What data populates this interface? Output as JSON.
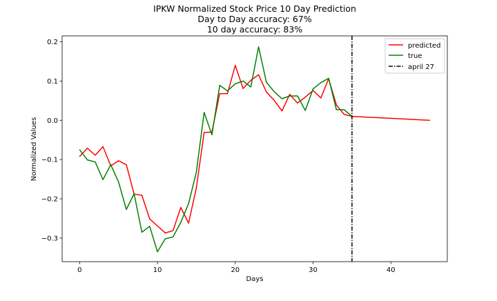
{
  "chart_data": {
    "type": "line",
    "title_lines": [
      "IPKW Normalized Stock Price 10 Day Prediction",
      "Day to Day accuracy: 67%",
      "10 day accuracy: 83%"
    ],
    "xlabel": "Days",
    "ylabel": "Normalized Values",
    "xlim": [
      -2.25,
      47.25
    ],
    "ylim": [
      -0.36,
      0.215
    ],
    "xticks": [
      0,
      10,
      20,
      30,
      40
    ],
    "yticks": [
      -0.3,
      -0.2,
      -0.1,
      0.0,
      0.1,
      0.2
    ],
    "ytick_labels": [
      "−0.3",
      "−0.2",
      "−0.1",
      "0.0",
      "0.1",
      "0.2"
    ],
    "legend_position": "top-right",
    "series": [
      {
        "name": "predicted",
        "color": "#ff0000",
        "x": [
          0,
          1,
          2,
          3,
          4,
          5,
          6,
          7,
          8,
          9,
          10,
          11,
          12,
          13,
          14,
          15,
          16,
          17,
          18,
          19,
          20,
          21,
          22,
          23,
          24,
          25,
          26,
          27,
          28,
          29,
          30,
          31,
          32,
          33,
          34,
          35,
          36,
          37,
          38,
          39,
          40,
          41,
          42,
          43,
          44,
          45
        ],
        "y": [
          -0.092,
          -0.071,
          -0.089,
          -0.067,
          -0.116,
          -0.103,
          -0.113,
          -0.188,
          -0.191,
          -0.251,
          -0.269,
          -0.287,
          -0.281,
          -0.222,
          -0.262,
          -0.172,
          -0.031,
          -0.03,
          0.068,
          0.068,
          0.14,
          0.081,
          0.102,
          0.116,
          0.072,
          0.051,
          0.024,
          0.066,
          0.044,
          0.059,
          0.076,
          0.057,
          0.106,
          0.039,
          0.015,
          0.01,
          0.009,
          0.008,
          0.007,
          0.006,
          0.005,
          0.004,
          0.003,
          0.002,
          0.001,
          0.0
        ]
      },
      {
        "name": "true",
        "color": "#008000",
        "x": [
          0,
          1,
          2,
          3,
          4,
          5,
          6,
          7,
          8,
          9,
          10,
          11,
          12,
          13,
          14,
          15,
          16,
          17,
          18,
          19,
          20,
          21,
          22,
          23,
          24,
          25,
          26,
          27,
          28,
          29,
          30,
          31,
          32,
          33,
          34,
          35
        ],
        "y": [
          -0.075,
          -0.101,
          -0.106,
          -0.151,
          -0.113,
          -0.157,
          -0.227,
          -0.187,
          -0.285,
          -0.27,
          -0.335,
          -0.302,
          -0.297,
          -0.26,
          -0.212,
          -0.132,
          0.02,
          -0.037,
          0.089,
          0.075,
          0.093,
          0.1,
          0.085,
          0.187,
          0.097,
          0.073,
          0.055,
          0.062,
          0.062,
          0.025,
          0.08,
          0.096,
          0.107,
          0.027,
          0.027,
          0.01
        ]
      }
    ],
    "vline": {
      "name": "april 27",
      "x": 35,
      "color": "#000000",
      "style": "dash-dot"
    }
  }
}
